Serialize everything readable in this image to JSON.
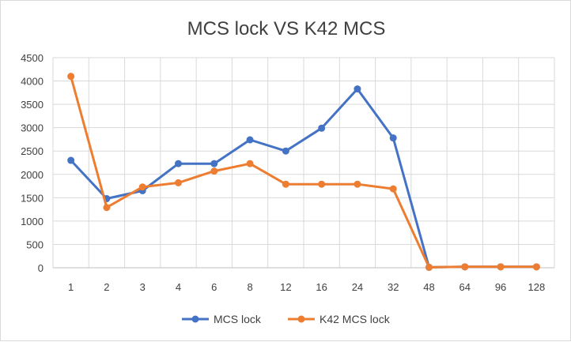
{
  "chart_data": {
    "type": "line",
    "title": "MCS lock VS K42 MCS",
    "xlabel": "",
    "ylabel": "",
    "categories": [
      "1",
      "2",
      "3",
      "4",
      "6",
      "8",
      "12",
      "16",
      "24",
      "32",
      "48",
      "64",
      "96",
      "128"
    ],
    "ylim": [
      0,
      4500
    ],
    "yticks": [
      0,
      500,
      1000,
      1500,
      2000,
      2500,
      3000,
      3500,
      4000,
      4500
    ],
    "grid": true,
    "legend_position": "bottom",
    "series": [
      {
        "name": "MCS lock",
        "color": "#4472c4",
        "values": [
          2300,
          1480,
          1650,
          2230,
          2230,
          2740,
          2500,
          2990,
          3830,
          2780,
          10,
          20,
          20,
          20
        ]
      },
      {
        "name": "K42 MCS lock",
        "color": "#ed7d31",
        "values": [
          4100,
          1290,
          1730,
          1820,
          2070,
          2230,
          1790,
          1790,
          1790,
          1690,
          10,
          20,
          20,
          20
        ]
      }
    ]
  }
}
